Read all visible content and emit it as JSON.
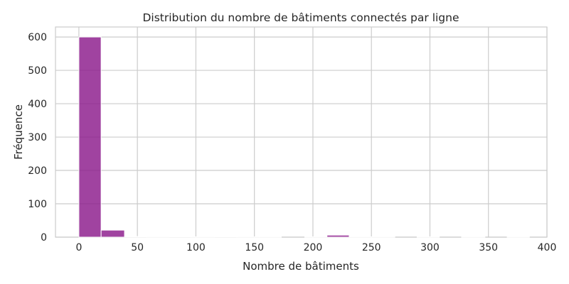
{
  "chart_data": {
    "type": "bar",
    "title": "Distribution du nombre de bâtiments connectés par ligne",
    "xlabel": "Nombre de bâtiments",
    "ylabel": "Fréquence",
    "xlim": [
      -20,
      400
    ],
    "ylim": [
      0,
      630
    ],
    "xticks": [
      0,
      50,
      100,
      150,
      200,
      250,
      300,
      350,
      400
    ],
    "yticks": [
      0,
      100,
      200,
      300,
      400,
      500,
      600
    ],
    "grid": true,
    "legend": "none",
    "bar_color": "#8b1a8b",
    "bins": [
      {
        "start": 0,
        "end": 19,
        "count": 600
      },
      {
        "start": 19,
        "end": 39,
        "count": 21
      },
      {
        "start": 39,
        "end": 58,
        "count": 2
      },
      {
        "start": 58,
        "end": 77,
        "count": 1
      },
      {
        "start": 77,
        "end": 96,
        "count": 2
      },
      {
        "start": 96,
        "end": 116,
        "count": 1
      },
      {
        "start": 116,
        "end": 135,
        "count": 2
      },
      {
        "start": 135,
        "end": 154,
        "count": 1
      },
      {
        "start": 154,
        "end": 173,
        "count": 1
      },
      {
        "start": 173,
        "end": 193,
        "count": 0
      },
      {
        "start": 193,
        "end": 212,
        "count": 1
      },
      {
        "start": 212,
        "end": 231,
        "count": 6
      },
      {
        "start": 231,
        "end": 250,
        "count": 1
      },
      {
        "start": 250,
        "end": 270,
        "count": 1
      },
      {
        "start": 270,
        "end": 289,
        "count": 0
      },
      {
        "start": 289,
        "end": 308,
        "count": 1
      },
      {
        "start": 308,
        "end": 327,
        "count": 0
      },
      {
        "start": 327,
        "end": 347,
        "count": 1
      },
      {
        "start": 347,
        "end": 366,
        "count": 0
      },
      {
        "start": 366,
        "end": 385,
        "count": 1
      }
    ]
  }
}
